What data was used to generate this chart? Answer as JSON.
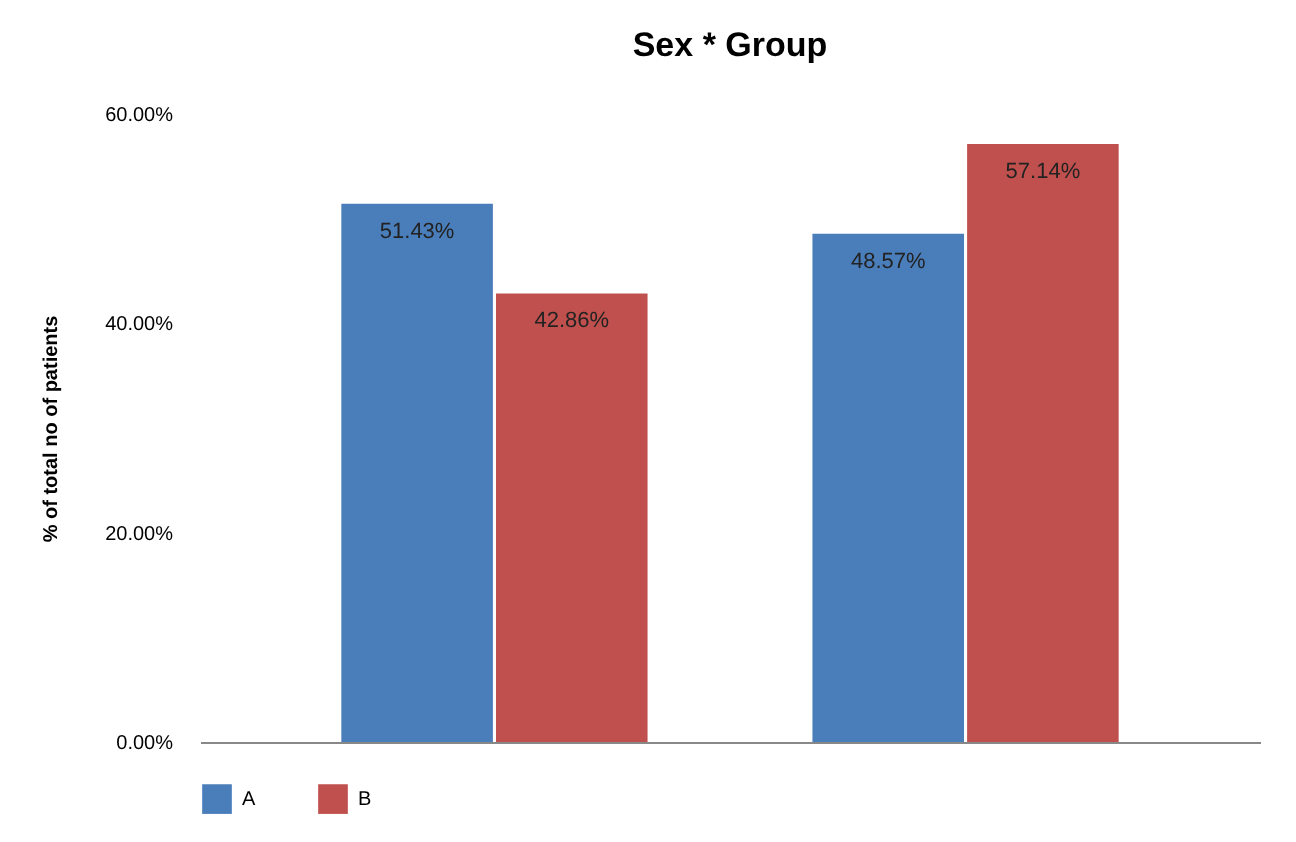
{
  "chart_data": {
    "type": "bar",
    "title": "Sex  * Group",
    "ylabel": "% of total no of patients",
    "categories": [
      null,
      null
    ],
    "series": [
      {
        "name": "A",
        "color": "#4a7ebb",
        "values": [
          51.43,
          48.57
        ],
        "value_labels": [
          "51.43%",
          "48.57%"
        ]
      },
      {
        "name": "B",
        "color": "#c0504d",
        "values": [
          42.86,
          57.14
        ],
        "value_labels": [
          "42.86%",
          "57.14%"
        ]
      }
    ],
    "ylim": [
      0,
      60
    ],
    "yticks": [
      {
        "value": 0,
        "label": "0.00%"
      },
      {
        "value": 20,
        "label": "20.00%"
      },
      {
        "value": 40,
        "label": "40.00%"
      },
      {
        "value": 60,
        "label": "60.00%"
      }
    ],
    "grid": false,
    "legend": "bottom"
  }
}
